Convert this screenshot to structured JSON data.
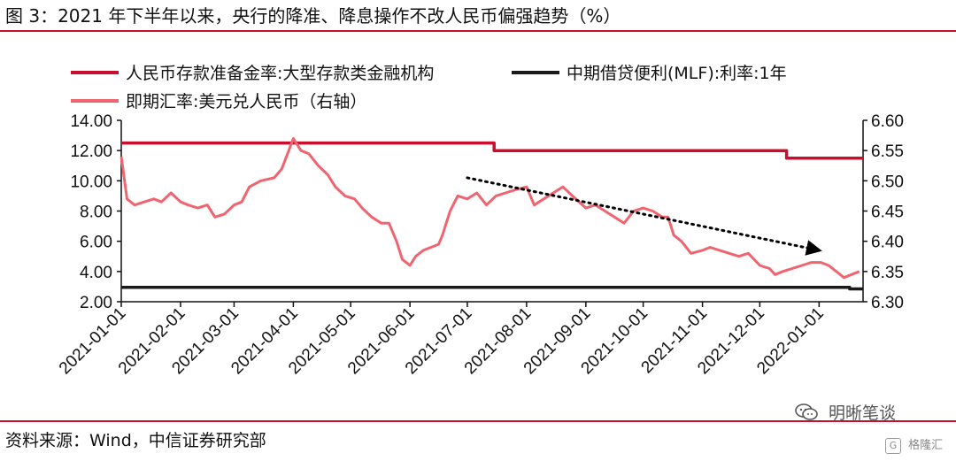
{
  "header": {
    "title": "图 3：2021 年下半年以来，央行的降准、降息操作不改人民币偏强趋势（%）"
  },
  "footer": {
    "source": "资料来源：Wind，中信证券研究部"
  },
  "watermark": {
    "text": "明晰笔谈",
    "stamp": "格隆汇"
  },
  "colors": {
    "rrr": "#c8102e",
    "mlf": "#1a1a1a",
    "fx": "#f06470",
    "trend": "#000000",
    "rule": "#c8102e"
  },
  "chart_data": {
    "type": "line",
    "legend": [
      {
        "name": "人民币存款准备金率:大型存款类金融机构",
        "color": "#c8102e"
      },
      {
        "name": "中期借贷便利(MLF):利率:1年",
        "color": "#1a1a1a"
      },
      {
        "name": "即期汇率:美元兑人民币（右轴）",
        "color": "#f06470"
      }
    ],
    "legend_placement": "top",
    "x_ticks": [
      "2021-01-01",
      "2021-02-01",
      "2021-03-01",
      "2021-04-01",
      "2021-05-01",
      "2021-06-01",
      "2021-07-01",
      "2021-08-01",
      "2021-09-01",
      "2021-10-01",
      "2021-11-01",
      "2021-12-01",
      "2022-01-01"
    ],
    "x_range": [
      "2021-01-01",
      "2022-01-24"
    ],
    "y_left": {
      "range": [
        2.0,
        14.0
      ],
      "ticks": [
        "2.00",
        "4.00",
        "6.00",
        "8.00",
        "10.00",
        "12.00",
        "14.00"
      ]
    },
    "y_right": {
      "range": [
        6.3,
        6.6
      ],
      "ticks": [
        "6.30",
        "6.35",
        "6.40",
        "6.45",
        "6.50",
        "6.55",
        "6.60"
      ]
    },
    "grid": false,
    "series": [
      {
        "name": "人民币存款准备金率:大型存款类金融机构",
        "axis": "left",
        "step": true,
        "points": [
          [
            "2021-01-01",
            12.5
          ],
          [
            "2021-07-15",
            12.0
          ],
          [
            "2021-12-15",
            11.5
          ],
          [
            "2022-01-24",
            11.5
          ]
        ]
      },
      {
        "name": "中期借贷便利(MLF):利率:1年",
        "axis": "left",
        "step": true,
        "points": [
          [
            "2021-01-01",
            2.95
          ],
          [
            "2022-01-17",
            2.85
          ],
          [
            "2022-01-24",
            2.85
          ]
        ]
      },
      {
        "name": "即期汇率:美元兑人民币（右轴）",
        "axis": "right",
        "points": [
          [
            "2021-01-01",
            6.54
          ],
          [
            "2021-01-04",
            6.47
          ],
          [
            "2021-01-08",
            6.46
          ],
          [
            "2021-01-13",
            6.465
          ],
          [
            "2021-01-18",
            6.47
          ],
          [
            "2021-01-22",
            6.465
          ],
          [
            "2021-01-27",
            6.48
          ],
          [
            "2021-02-01",
            6.465
          ],
          [
            "2021-02-05",
            6.46
          ],
          [
            "2021-02-10",
            6.455
          ],
          [
            "2021-02-15",
            6.46
          ],
          [
            "2021-02-19",
            6.44
          ],
          [
            "2021-02-24",
            6.445
          ],
          [
            "2021-03-01",
            6.46
          ],
          [
            "2021-03-05",
            6.465
          ],
          [
            "2021-03-09",
            6.49
          ],
          [
            "2021-03-15",
            6.5
          ],
          [
            "2021-03-22",
            6.505
          ],
          [
            "2021-03-26",
            6.52
          ],
          [
            "2021-04-01",
            6.57
          ],
          [
            "2021-04-05",
            6.55
          ],
          [
            "2021-04-09",
            6.545
          ],
          [
            "2021-04-14",
            6.525
          ],
          [
            "2021-04-19",
            6.51
          ],
          [
            "2021-04-23",
            6.49
          ],
          [
            "2021-04-28",
            6.475
          ],
          [
            "2021-05-03",
            6.47
          ],
          [
            "2021-05-07",
            6.455
          ],
          [
            "2021-05-12",
            6.44
          ],
          [
            "2021-05-17",
            6.43
          ],
          [
            "2021-05-21",
            6.43
          ],
          [
            "2021-05-25",
            6.4
          ],
          [
            "2021-05-28",
            6.37
          ],
          [
            "2021-06-01",
            6.36
          ],
          [
            "2021-06-04",
            6.375
          ],
          [
            "2021-06-08",
            6.385
          ],
          [
            "2021-06-12",
            6.39
          ],
          [
            "2021-06-16",
            6.395
          ],
          [
            "2021-06-18",
            6.41
          ],
          [
            "2021-06-22",
            6.45
          ],
          [
            "2021-06-26",
            6.475
          ],
          [
            "2021-07-01",
            6.47
          ],
          [
            "2021-07-06",
            6.48
          ],
          [
            "2021-07-11",
            6.46
          ],
          [
            "2021-07-16",
            6.475
          ],
          [
            "2021-07-21",
            6.48
          ],
          [
            "2021-07-26",
            6.485
          ],
          [
            "2021-08-01",
            6.49
          ],
          [
            "2021-08-05",
            6.46
          ],
          [
            "2021-08-10",
            6.47
          ],
          [
            "2021-08-15",
            6.48
          ],
          [
            "2021-08-20",
            6.49
          ],
          [
            "2021-08-25",
            6.475
          ],
          [
            "2021-09-01",
            6.455
          ],
          [
            "2021-09-06",
            6.46
          ],
          [
            "2021-09-11",
            6.45
          ],
          [
            "2021-09-16",
            6.44
          ],
          [
            "2021-09-21",
            6.43
          ],
          [
            "2021-09-26",
            6.45
          ],
          [
            "2021-10-01",
            6.455
          ],
          [
            "2021-10-06",
            6.45
          ],
          [
            "2021-10-11",
            6.44
          ],
          [
            "2021-10-14",
            6.44
          ],
          [
            "2021-10-17",
            6.41
          ],
          [
            "2021-10-21",
            6.4
          ],
          [
            "2021-10-26",
            6.38
          ],
          [
            "2021-11-01",
            6.385
          ],
          [
            "2021-11-05",
            6.39
          ],
          [
            "2021-11-10",
            6.385
          ],
          [
            "2021-11-15",
            6.38
          ],
          [
            "2021-11-20",
            6.375
          ],
          [
            "2021-11-25",
            6.38
          ],
          [
            "2021-12-01",
            6.36
          ],
          [
            "2021-12-06",
            6.355
          ],
          [
            "2021-12-09",
            6.345
          ],
          [
            "2021-12-13",
            6.35
          ],
          [
            "2021-12-18",
            6.355
          ],
          [
            "2021-12-23",
            6.36
          ],
          [
            "2021-12-28",
            6.365
          ],
          [
            "2022-01-02",
            6.365
          ],
          [
            "2022-01-06",
            6.36
          ],
          [
            "2022-01-10",
            6.35
          ],
          [
            "2022-01-14",
            6.34
          ],
          [
            "2022-01-18",
            6.345
          ],
          [
            "2022-01-22",
            6.35
          ]
        ]
      }
    ],
    "annotations": [
      {
        "type": "dotted-arrow",
        "axis": "right",
        "from": [
          "2021-07-01",
          6.505
        ],
        "to": [
          "2022-01-01",
          6.385
        ]
      }
    ]
  }
}
